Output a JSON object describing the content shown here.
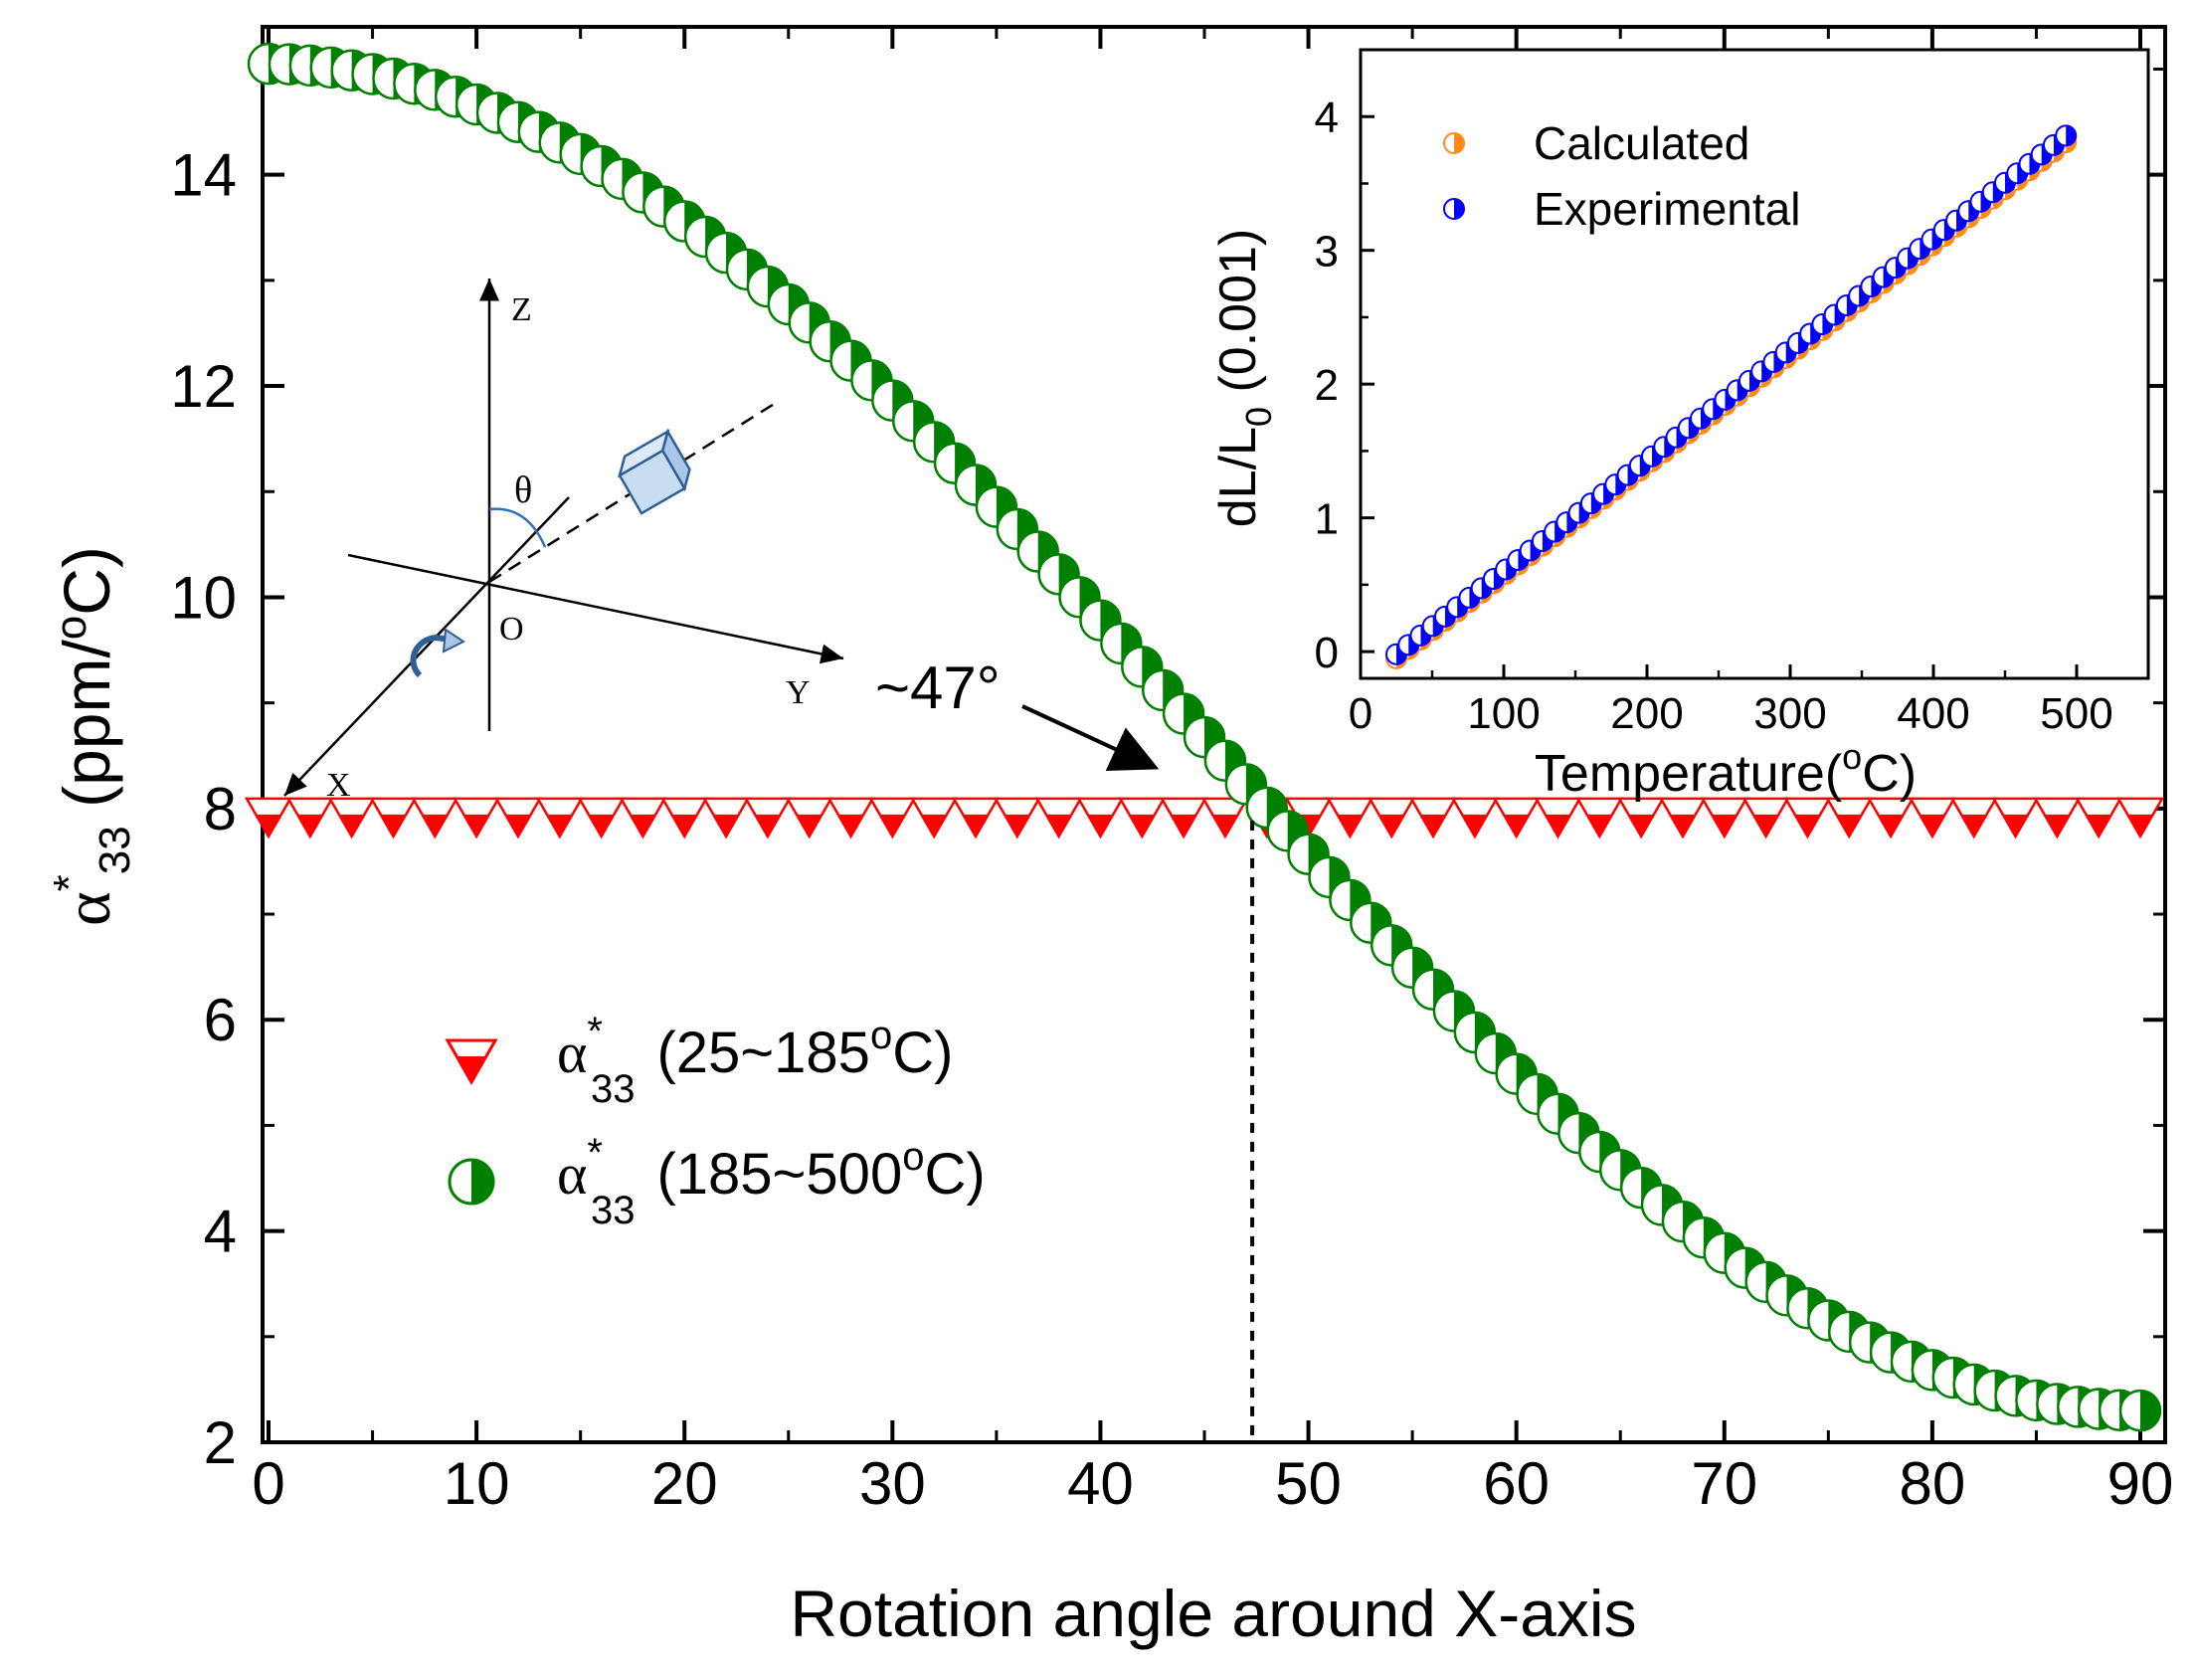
{
  "chart_data": [
    {
      "type": "scatter",
      "title": "",
      "xlabel": "Rotation angle around X-axis",
      "ylabel": {
        "alpha": "α",
        "sup": "*",
        "sub": "33",
        "unit_pre": " (ppm/",
        "unit_deg": "o",
        "unit_post": "C)"
      },
      "xlim": [
        0,
        90
      ],
      "ylim": [
        2,
        15.4
      ],
      "xticks": [
        "0",
        "10",
        "20",
        "30",
        "40",
        "50",
        "60",
        "70",
        "80",
        "90"
      ],
      "yticks": [
        "2",
        "4",
        "6",
        "8",
        "10",
        "12",
        "14"
      ],
      "legend_position": "lower-left",
      "series": [
        {
          "name": "α*33 (25~185°C)",
          "legend": {
            "alpha": "α",
            "sup": "*",
            "sub": "33",
            "range": "(25~185",
            "deg": "o",
            "post": "C)"
          },
          "marker": "half-filled-triangle-down",
          "color": "#ff0000",
          "x_start": 0,
          "x_end": 90,
          "x_step": 2,
          "constant_y": 8.0
        },
        {
          "name": "α*33 (185~500°C)",
          "legend": {
            "alpha": "α",
            "sup": "*",
            "sub": "33",
            "range": "(185~500",
            "deg": "o",
            "post": "C)"
          },
          "marker": "half-filled-circle",
          "color": "#008000",
          "x_start": 0,
          "x_end": 90,
          "x_step": 1,
          "formula": "y = 2.3*sin(x)^2 + 15.05*cos(x)^2",
          "y_at_0": 15.05,
          "y_at_90": 2.3
        }
      ],
      "annotations": {
        "crossing_label": "~47°",
        "crossing_x": 47.3,
        "crossing_y": 8.0,
        "crossing_line_style": "dashed"
      },
      "diagram_labels": {
        "z": "Z",
        "y": "Y",
        "x": "X",
        "o": "O",
        "theta": "θ"
      }
    },
    {
      "type": "scatter",
      "title": "",
      "xlabel": {
        "text": "Temperature(",
        "deg": "o",
        "post": "C)"
      },
      "ylabel": {
        "text": "dL/L",
        "sub": "0",
        "post": " (0.001)"
      },
      "xlim": [
        0,
        550
      ],
      "ylim": [
        -0.2,
        4.5
      ],
      "xticks": [
        "0",
        "100",
        "200",
        "300",
        "400",
        "500"
      ],
      "yticks": [
        "0",
        "1",
        "2",
        "3",
        "4"
      ],
      "legend_position": "top-left",
      "series": [
        {
          "name": "Calculated",
          "color": "#ff8c1a",
          "marker": "half-filled-circle",
          "x_start": 25,
          "x_end": 500,
          "x_step": 8.5,
          "y_at_start": -0.05,
          "y_at_end": 3.87
        },
        {
          "name": "Experimental",
          "color": "#0000ff",
          "marker": "half-filled-circle",
          "x_start": 25,
          "x_end": 500,
          "x_step": 8.5,
          "y_at_start": -0.02,
          "y_at_end": 3.92
        }
      ]
    }
  ]
}
